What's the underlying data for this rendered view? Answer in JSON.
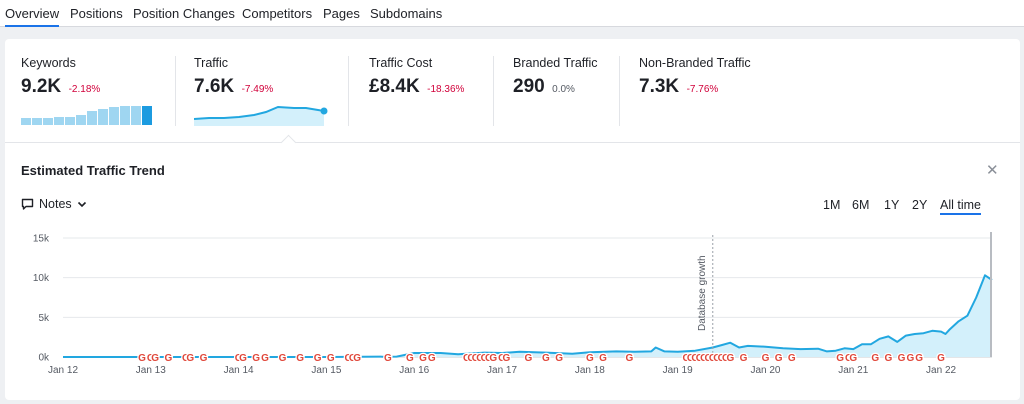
{
  "tabs": [
    "Overview",
    "Positions",
    "Position Changes",
    "Competitors",
    "Pages",
    "Subdomains"
  ],
  "metrics": {
    "keywords": {
      "label": "Keywords",
      "value": "9.2K",
      "delta": "-2.18%"
    },
    "traffic": {
      "label": "Traffic",
      "value": "7.6K",
      "delta": "-7.49%"
    },
    "traffic_cost": {
      "label": "Traffic Cost",
      "value": "£8.4K",
      "delta": "-18.36%"
    },
    "branded": {
      "label": "Branded Traffic",
      "value": "290",
      "delta": "0.0%"
    },
    "non_branded": {
      "label": "Non-Branded Traffic",
      "value": "7.3K",
      "delta": "-7.76%"
    }
  },
  "colors": {
    "accent": "#1a73e8",
    "series": "#22a7e0",
    "fill": "#d3f0fb",
    "negative": "#d1003a"
  },
  "trend": {
    "title": "Estimated Traffic Trend",
    "notes_label": "Notes",
    "ranges": [
      "1M",
      "6M",
      "1Y",
      "2Y",
      "All time"
    ],
    "active_range": "All time",
    "close_icon": "close-icon"
  },
  "chart_data": {
    "type": "area",
    "x_ticks": [
      "Jan 12",
      "Jan 13",
      "Jan 14",
      "Jan 15",
      "Jan 16",
      "Jan 17",
      "Jan 18",
      "Jan 19",
      "Jan 20",
      "Jan 21",
      "Jan 22"
    ],
    "y_ticks": [
      "0k",
      "5k",
      "10k",
      "15k"
    ],
    "ylim": [
      0,
      15000
    ],
    "xlim": [
      2012.0,
      2022.58
    ],
    "annotation": {
      "text": "Database growth",
      "x": 2019.4
    },
    "series": [
      {
        "x": [
          2012.0,
          2013.0,
          2014.0,
          2015.0,
          2015.8,
          2016.0,
          2016.3,
          2016.5,
          2016.8,
          2017.0,
          2017.2,
          2017.5,
          2017.8,
          2018.0,
          2018.3,
          2018.5,
          2018.7,
          2018.75,
          2018.85,
          2019.0,
          2019.2,
          2019.4,
          2019.5,
          2019.6,
          2019.7,
          2019.8,
          2020.0,
          2020.2,
          2020.4,
          2020.6,
          2020.7,
          2020.8,
          2020.9,
          2021.0,
          2021.1,
          2021.2,
          2021.3,
          2021.4,
          2021.5,
          2021.6,
          2021.7,
          2021.8,
          2021.9,
          2022.0,
          2022.05,
          2022.1,
          2022.2,
          2022.3,
          2022.4,
          2022.5,
          2022.58
        ],
        "values": [
          0,
          0,
          0,
          0,
          50,
          500,
          500,
          350,
          550,
          500,
          650,
          550,
          400,
          600,
          700,
          650,
          700,
          1200,
          700,
          650,
          800,
          1200,
          1500,
          1800,
          1200,
          1400,
          1300,
          1100,
          1000,
          1050,
          700,
          800,
          1100,
          1000,
          1600,
          1600,
          2300,
          2600,
          1900,
          2700,
          2900,
          3000,
          3300,
          3200,
          2900,
          3500,
          4500,
          5200,
          7500,
          10300,
          9700
        ]
      }
    ],
    "google_updates": [
      2012.9,
      2013.0,
      2013.05,
      2013.2,
      2013.4,
      2013.45,
      2013.6,
      2014.0,
      2014.05,
      2014.2,
      2014.3,
      2014.5,
      2014.7,
      2014.9,
      2015.05,
      2015.25,
      2015.3,
      2015.35,
      2015.7,
      2015.95,
      2016.1,
      2016.2,
      2016.6,
      2016.65,
      2016.7,
      2016.75,
      2016.8,
      2016.85,
      2016.9,
      2017.0,
      2017.05,
      2017.3,
      2017.5,
      2017.65,
      2018.0,
      2018.15,
      2018.45,
      2019.1,
      2019.15,
      2019.2,
      2019.25,
      2019.3,
      2019.35,
      2019.4,
      2019.45,
      2019.5,
      2019.55,
      2019.6,
      2019.75,
      2020.0,
      2020.15,
      2020.3,
      2020.85,
      2020.95,
      2021.0,
      2021.25,
      2021.4,
      2021.55,
      2021.65,
      2021.75,
      2022.0
    ]
  }
}
